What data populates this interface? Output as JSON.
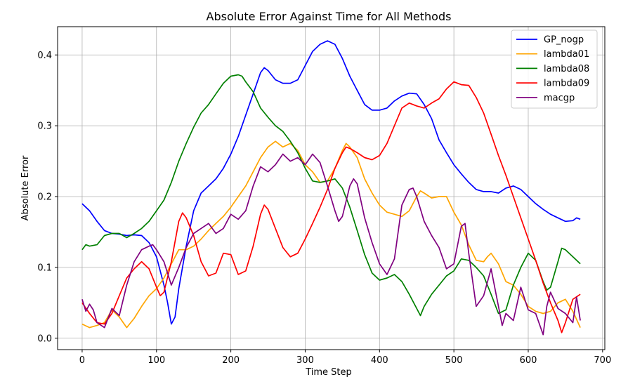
{
  "chart_data": {
    "type": "line",
    "title": "Absolute Error Against Time for All Methods",
    "xlabel": "Time Step",
    "ylabel": "Absolute Error",
    "xlim": [
      -33,
      703
    ],
    "ylim": [
      -0.0161,
      0.4399
    ],
    "xticks": [
      0,
      100,
      200,
      300,
      400,
      500,
      600,
      700
    ],
    "yticks": [
      0.0,
      0.1,
      0.2,
      0.3,
      0.4
    ],
    "grid": true,
    "legend_position": "top-right",
    "series": [
      {
        "name": "GP_nogp",
        "color": "#0000ff",
        "x": [
          0,
          10,
          20,
          30,
          40,
          50,
          60,
          70,
          80,
          90,
          100,
          110,
          115,
          120,
          125,
          130,
          140,
          150,
          160,
          170,
          180,
          190,
          200,
          210,
          220,
          230,
          240,
          245,
          250,
          260,
          270,
          280,
          290,
          300,
          310,
          320,
          330,
          340,
          350,
          360,
          370,
          380,
          390,
          400,
          410,
          420,
          430,
          440,
          450,
          460,
          470,
          480,
          490,
          500,
          510,
          520,
          530,
          540,
          550,
          560,
          570,
          580,
          590,
          600,
          610,
          620,
          630,
          640,
          650,
          660,
          665,
          670
        ],
        "y": [
          0.19,
          0.18,
          0.165,
          0.152,
          0.148,
          0.147,
          0.145,
          0.146,
          0.145,
          0.135,
          0.115,
          0.075,
          0.05,
          0.02,
          0.03,
          0.07,
          0.13,
          0.18,
          0.205,
          0.215,
          0.225,
          0.24,
          0.26,
          0.285,
          0.315,
          0.345,
          0.375,
          0.382,
          0.378,
          0.365,
          0.36,
          0.36,
          0.365,
          0.385,
          0.405,
          0.415,
          0.42,
          0.415,
          0.395,
          0.37,
          0.35,
          0.33,
          0.322,
          0.322,
          0.325,
          0.335,
          0.342,
          0.346,
          0.345,
          0.33,
          0.31,
          0.28,
          0.262,
          0.245,
          0.232,
          0.22,
          0.21,
          0.207,
          0.207,
          0.205,
          0.212,
          0.215,
          0.21,
          0.2,
          0.19,
          0.182,
          0.175,
          0.17,
          0.165,
          0.166,
          0.17,
          0.168
        ]
      },
      {
        "name": "lambda01",
        "color": "#ffa500",
        "x": [
          0,
          10,
          20,
          30,
          40,
          50,
          60,
          70,
          80,
          90,
          100,
          110,
          120,
          130,
          140,
          150,
          160,
          170,
          180,
          190,
          200,
          210,
          220,
          230,
          240,
          250,
          260,
          270,
          280,
          290,
          300,
          310,
          320,
          330,
          340,
          350,
          355,
          360,
          370,
          380,
          390,
          400,
          410,
          420,
          430,
          440,
          450,
          455,
          460,
          470,
          480,
          490,
          500,
          510,
          520,
          530,
          540,
          545,
          550,
          560,
          570,
          580,
          590,
          600,
          610,
          620,
          630,
          640,
          650,
          660,
          670
        ],
        "y": [
          0.02,
          0.015,
          0.018,
          0.022,
          0.04,
          0.03,
          0.015,
          0.028,
          0.045,
          0.06,
          0.07,
          0.085,
          0.105,
          0.125,
          0.125,
          0.13,
          0.14,
          0.152,
          0.162,
          0.172,
          0.185,
          0.2,
          0.215,
          0.235,
          0.255,
          0.27,
          0.278,
          0.27,
          0.275,
          0.265,
          0.245,
          0.235,
          0.22,
          0.222,
          0.24,
          0.265,
          0.275,
          0.27,
          0.255,
          0.225,
          0.205,
          0.188,
          0.178,
          0.175,
          0.172,
          0.18,
          0.2,
          0.208,
          0.205,
          0.198,
          0.2,
          0.2,
          0.178,
          0.16,
          0.132,
          0.11,
          0.108,
          0.115,
          0.12,
          0.105,
          0.08,
          0.075,
          0.062,
          0.045,
          0.038,
          0.035,
          0.038,
          0.05,
          0.055,
          0.038,
          0.015
        ]
      },
      {
        "name": "lambda08",
        "color": "#008000",
        "x": [
          0,
          5,
          10,
          20,
          30,
          40,
          50,
          60,
          70,
          80,
          90,
          100,
          110,
          120,
          130,
          140,
          150,
          160,
          170,
          180,
          190,
          200,
          210,
          215,
          220,
          230,
          240,
          250,
          260,
          270,
          280,
          290,
          300,
          310,
          320,
          330,
          340,
          350,
          360,
          370,
          380,
          390,
          400,
          410,
          420,
          430,
          440,
          450,
          455,
          460,
          470,
          480,
          490,
          500,
          510,
          520,
          530,
          540,
          550,
          560,
          570,
          580,
          590,
          600,
          610,
          620,
          625,
          630,
          640,
          645,
          650,
          660,
          670
        ],
        "y": [
          0.125,
          0.132,
          0.13,
          0.132,
          0.145,
          0.148,
          0.148,
          0.142,
          0.148,
          0.155,
          0.165,
          0.18,
          0.195,
          0.22,
          0.25,
          0.275,
          0.298,
          0.318,
          0.33,
          0.345,
          0.36,
          0.37,
          0.372,
          0.37,
          0.362,
          0.348,
          0.325,
          0.312,
          0.3,
          0.292,
          0.278,
          0.262,
          0.24,
          0.222,
          0.22,
          0.222,
          0.225,
          0.212,
          0.185,
          0.152,
          0.118,
          0.092,
          0.082,
          0.085,
          0.09,
          0.08,
          0.062,
          0.042,
          0.032,
          0.045,
          0.062,
          0.075,
          0.088,
          0.095,
          0.112,
          0.11,
          0.1,
          0.088,
          0.062,
          0.035,
          0.04,
          0.075,
          0.1,
          0.12,
          0.11,
          0.08,
          0.068,
          0.072,
          0.108,
          0.127,
          0.125,
          0.115,
          0.105
        ]
      },
      {
        "name": "lambda09",
        "color": "#ff0000",
        "x": [
          0,
          10,
          20,
          30,
          40,
          50,
          60,
          70,
          80,
          90,
          100,
          105,
          110,
          120,
          130,
          135,
          140,
          150,
          160,
          170,
          180,
          190,
          200,
          210,
          220,
          230,
          240,
          245,
          250,
          260,
          270,
          280,
          290,
          300,
          310,
          320,
          330,
          340,
          350,
          355,
          360,
          370,
          380,
          390,
          400,
          410,
          420,
          430,
          440,
          450,
          460,
          470,
          480,
          490,
          500,
          510,
          520,
          530,
          540,
          550,
          560,
          570,
          580,
          590,
          600,
          610,
          620,
          630,
          640,
          645,
          650,
          660,
          670
        ],
        "y": [
          0.05,
          0.035,
          0.022,
          0.02,
          0.035,
          0.06,
          0.085,
          0.098,
          0.108,
          0.098,
          0.072,
          0.06,
          0.065,
          0.108,
          0.165,
          0.177,
          0.17,
          0.145,
          0.108,
          0.088,
          0.092,
          0.12,
          0.118,
          0.09,
          0.095,
          0.13,
          0.175,
          0.188,
          0.182,
          0.155,
          0.128,
          0.115,
          0.12,
          0.14,
          0.162,
          0.185,
          0.21,
          0.24,
          0.262,
          0.27,
          0.268,
          0.262,
          0.255,
          0.252,
          0.258,
          0.275,
          0.3,
          0.325,
          0.332,
          0.328,
          0.325,
          0.332,
          0.338,
          0.352,
          0.362,
          0.358,
          0.357,
          0.34,
          0.318,
          0.288,
          0.258,
          0.23,
          0.2,
          0.17,
          0.14,
          0.11,
          0.078,
          0.05,
          0.025,
          0.008,
          0.022,
          0.055,
          0.062
        ]
      },
      {
        "name": "macgp",
        "color": "#800080",
        "x": [
          0,
          5,
          10,
          15,
          20,
          30,
          40,
          50,
          60,
          70,
          80,
          90,
          95,
          100,
          110,
          120,
          130,
          140,
          150,
          160,
          170,
          180,
          190,
          200,
          210,
          220,
          230,
          240,
          250,
          260,
          270,
          280,
          290,
          300,
          310,
          320,
          330,
          340,
          345,
          350,
          360,
          365,
          370,
          380,
          390,
          400,
          410,
          420,
          430,
          440,
          445,
          450,
          460,
          470,
          480,
          490,
          500,
          510,
          515,
          520,
          530,
          540,
          550,
          560,
          565,
          570,
          580,
          590,
          600,
          610,
          620,
          625,
          630,
          640,
          650,
          660,
          665,
          670
        ],
        "y": [
          0.055,
          0.038,
          0.048,
          0.04,
          0.022,
          0.015,
          0.042,
          0.032,
          0.075,
          0.108,
          0.125,
          0.13,
          0.132,
          0.125,
          0.108,
          0.075,
          0.1,
          0.128,
          0.148,
          0.155,
          0.162,
          0.148,
          0.155,
          0.175,
          0.168,
          0.18,
          0.215,
          0.242,
          0.235,
          0.245,
          0.26,
          0.25,
          0.255,
          0.245,
          0.26,
          0.248,
          0.215,
          0.18,
          0.165,
          0.172,
          0.215,
          0.225,
          0.218,
          0.17,
          0.135,
          0.105,
          0.09,
          0.112,
          0.188,
          0.21,
          0.212,
          0.2,
          0.165,
          0.145,
          0.128,
          0.098,
          0.105,
          0.158,
          0.162,
          0.12,
          0.045,
          0.06,
          0.098,
          0.045,
          0.018,
          0.035,
          0.025,
          0.072,
          0.04,
          0.035,
          0.005,
          0.045,
          0.065,
          0.042,
          0.035,
          0.022,
          0.058,
          0.025
        ]
      }
    ]
  }
}
